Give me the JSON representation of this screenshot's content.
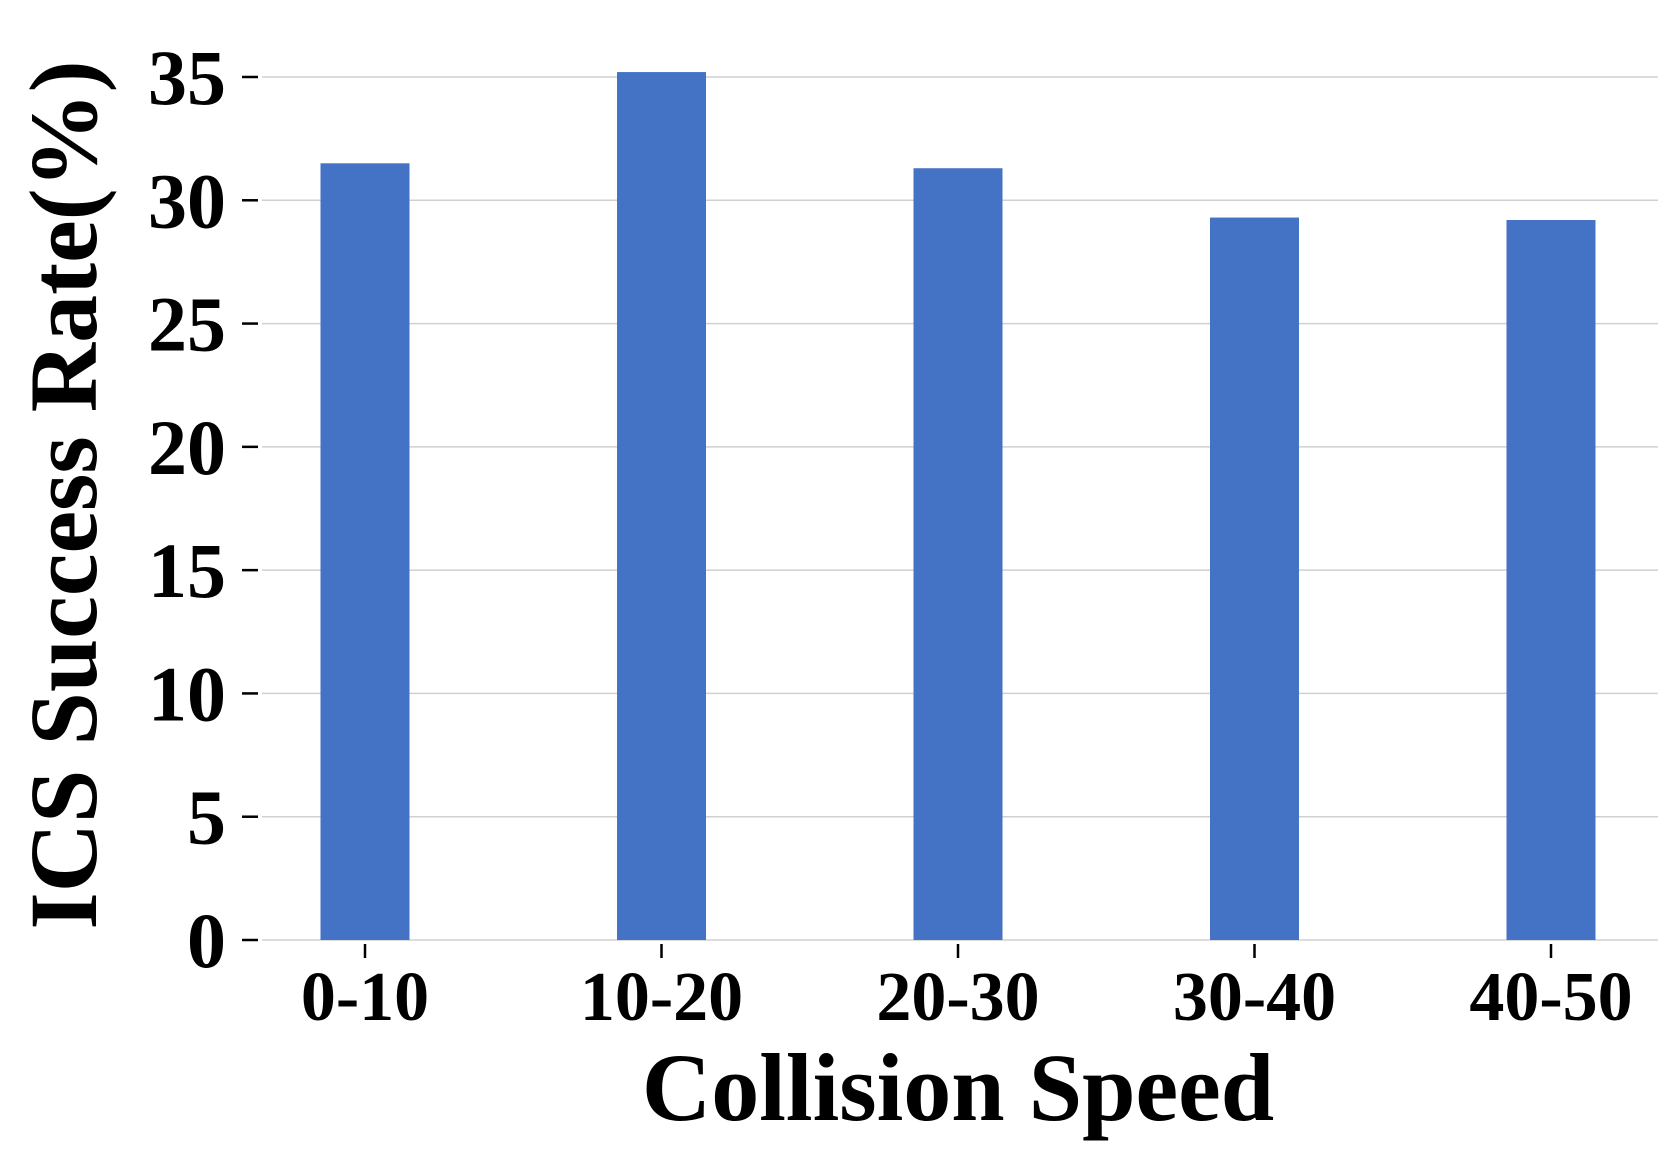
{
  "chart_data": {
    "type": "bar",
    "categories": [
      "0-10",
      "10-20",
      "20-30",
      "30-40",
      "40-50"
    ],
    "values": [
      31.5,
      35.2,
      31.3,
      29.3,
      29.2
    ],
    "title": "",
    "xlabel": "Collision Speed",
    "ylabel": "ICS Success Rate(%)",
    "ylim": [
      0,
      35
    ],
    "yticks": [
      0,
      5,
      10,
      15,
      20,
      25,
      30,
      35
    ],
    "grid": "horizontal",
    "legend": "none",
    "colors": {
      "bar": "#4472C4",
      "grid": "#d0d0d0",
      "text": "#000000"
    }
  }
}
